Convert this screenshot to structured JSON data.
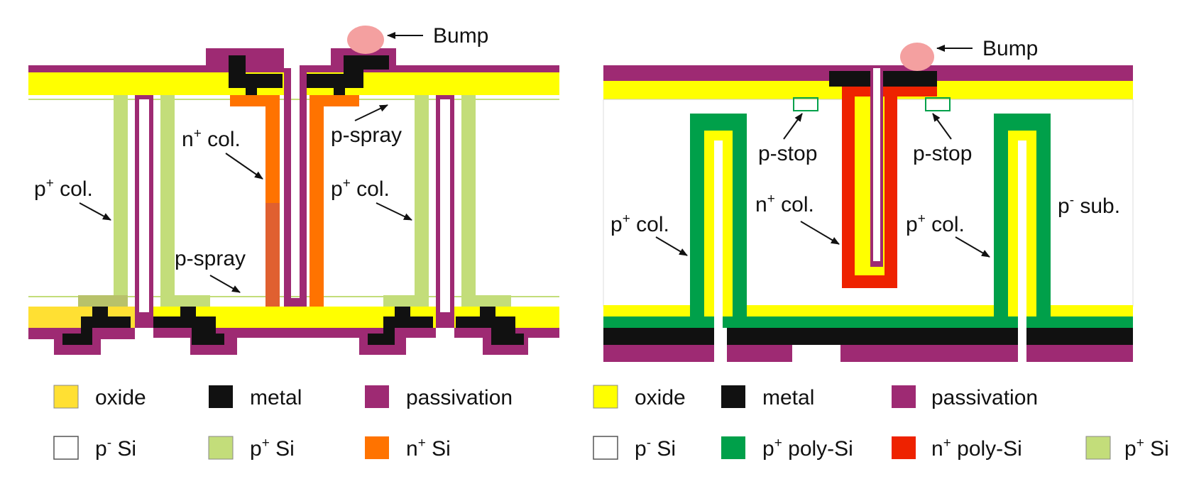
{
  "colors": {
    "oxide_left": "#ffe033",
    "oxide_right": "#ffff00",
    "metal": "#111111",
    "passivation": "#9e2a73",
    "p_minus_si": "#ffffff",
    "p_plus_si": "#c3dd7a",
    "n_plus_si": "#ff7300",
    "p_plus_poly": "#00a04a",
    "n_plus_poly": "#ee2200",
    "bump": "#f4a0a0"
  },
  "left_diagram": {
    "bump": "Bump",
    "n_col": {
      "pre": "n",
      "sup": "+",
      "post": " col."
    },
    "p_spray_top": "p-spray",
    "p_col_left": {
      "pre": "p",
      "sup": "+",
      "post": " col."
    },
    "p_col_right": {
      "pre": "p",
      "sup": "+",
      "post": " col."
    },
    "p_spray_bottom": "p-spray"
  },
  "right_diagram": {
    "bump": "Bump",
    "p_stop_left": "p-stop",
    "p_stop_right": "p-stop",
    "n_col": {
      "pre": "n",
      "sup": "+",
      "post": " col."
    },
    "p_col_left": {
      "pre": "p",
      "sup": "+",
      "post": " col."
    },
    "p_col_right": {
      "pre": "p",
      "sup": "+",
      "post": " col."
    },
    "p_sub": {
      "pre": "p",
      "sup": "-",
      "post": " sub."
    }
  },
  "legend_left": {
    "oxide": "oxide",
    "metal": "metal",
    "passivation": "passivation",
    "p_minus_si": {
      "pre": "p",
      "sup": "-",
      "post": " Si"
    },
    "p_plus_si": {
      "pre": "p",
      "sup": "+",
      "post": " Si"
    },
    "n_plus_si": {
      "pre": "n",
      "sup": "+",
      "post": " Si"
    }
  },
  "legend_right": {
    "oxide": "oxide",
    "metal": "metal",
    "passivation": "passivation",
    "p_minus_si": {
      "pre": "p",
      "sup": "-",
      "post": " Si"
    },
    "p_plus_poly": {
      "pre": "p",
      "sup": "+",
      "post": " poly-Si"
    },
    "n_plus_poly": {
      "pre": "n",
      "sup": "+",
      "post": " poly-Si"
    },
    "p_plus_si": {
      "pre": "p",
      "sup": "+",
      "post": " Si"
    }
  }
}
